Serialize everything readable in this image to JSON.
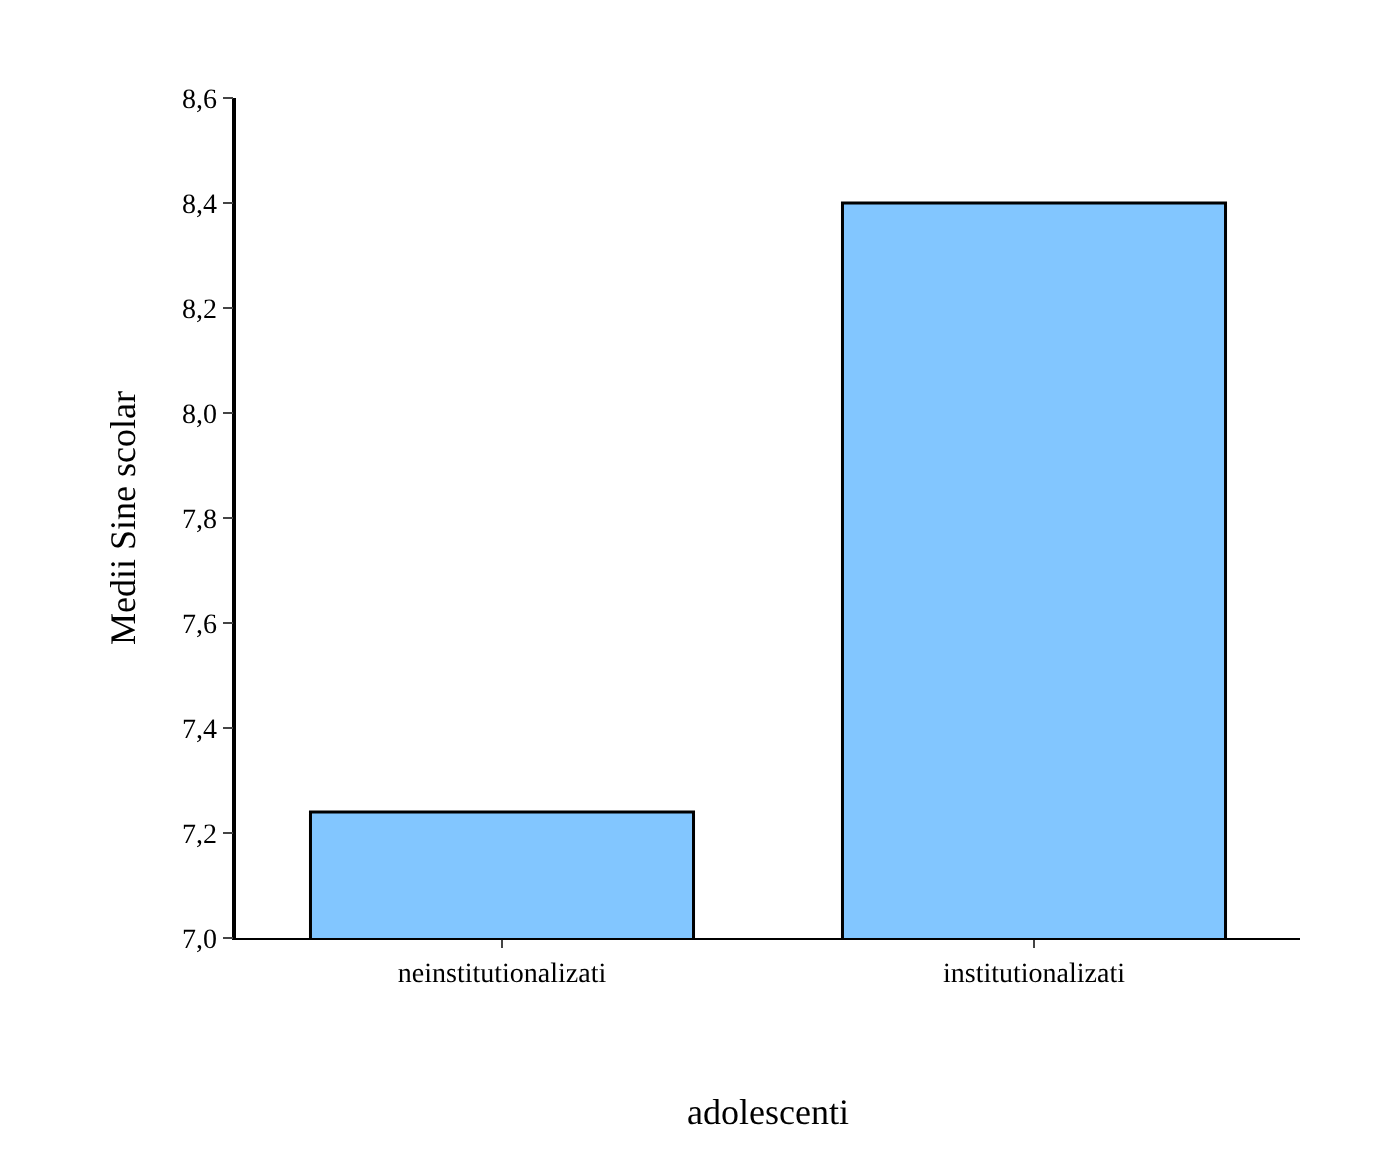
{
  "chart_data": {
    "type": "bar",
    "xlabel": "adolescenti",
    "ylabel": "Medii Sine scolar",
    "categories": [
      "neinstitutionalizati",
      "institutionalizati"
    ],
    "values": [
      7.24,
      8.4
    ],
    "color": "#82c6ff",
    "ylim": [
      7.0,
      8.6
    ],
    "yticks": [
      {
        "value": 7.0,
        "label": "7,0"
      },
      {
        "value": 7.2,
        "label": "7,2"
      },
      {
        "value": 7.4,
        "label": "7,4"
      },
      {
        "value": 7.6,
        "label": "7,6"
      },
      {
        "value": 7.8,
        "label": "7,8"
      },
      {
        "value": 8.0,
        "label": "8,0"
      },
      {
        "value": 8.2,
        "label": "8,2"
      },
      {
        "value": 8.4,
        "label": "8,4"
      },
      {
        "value": 8.6,
        "label": "8,6"
      }
    ],
    "legend": false
  }
}
